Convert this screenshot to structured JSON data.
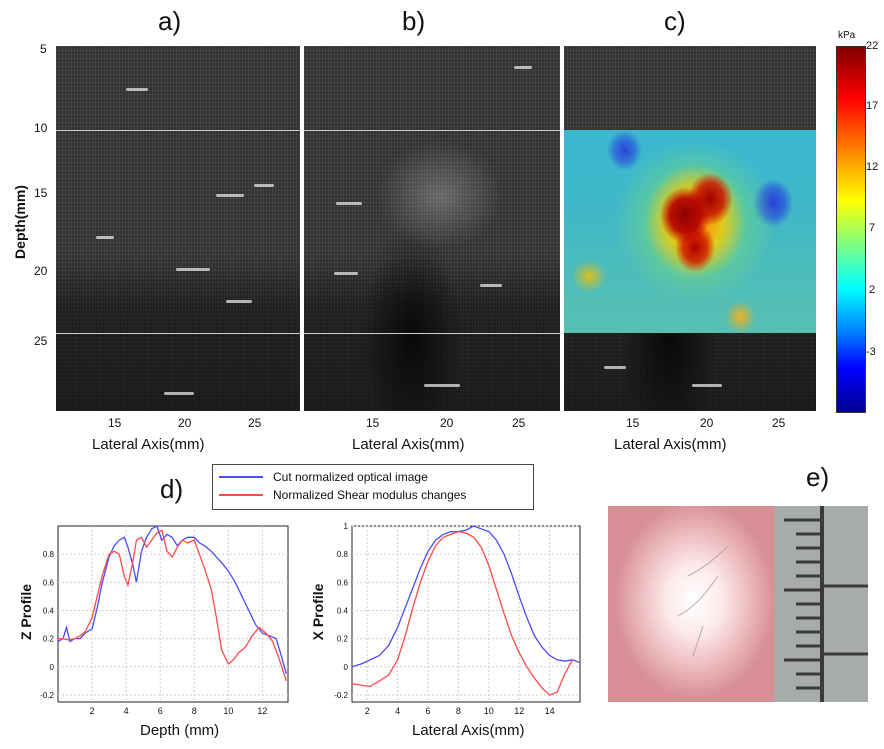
{
  "panel_labels": {
    "a": "a)",
    "b": "b)",
    "c": "c)",
    "d": "d)",
    "e": "e)"
  },
  "top_panels": {
    "ylabel": "Depth(mm)",
    "xlabel": "Lateral Axis(mm)",
    "yticks": [
      "5",
      "10",
      "15",
      "20",
      "25"
    ],
    "xticks": [
      "15",
      "20",
      "25"
    ]
  },
  "colorbar": {
    "unit": "kPa",
    "ticks": [
      "22",
      "17",
      "12",
      "7",
      "2",
      "-3"
    ],
    "range": [
      -7,
      22
    ],
    "colormap": "jet"
  },
  "legend": {
    "entries": [
      {
        "label": "Cut normalized optical image",
        "color": "#4a4aff"
      },
      {
        "label": "Normalized Shear modulus changes",
        "color": "#ff4a4a"
      }
    ]
  },
  "chart_data": [
    {
      "type": "line",
      "xlabel": "Depth (mm)",
      "ylabel": "Z Profile",
      "xlim": [
        0,
        13.5
      ],
      "ylim": [
        -0.25,
        1.0
      ],
      "xticks": [
        "2",
        "4",
        "6",
        "8",
        "10",
        "12"
      ],
      "yticks": [
        "0.8",
        "0.6",
        "0.4",
        "0.2",
        "0",
        "-0.2"
      ],
      "grid": true,
      "series": [
        {
          "color": "#4a4aff",
          "x": [
            0.0,
            0.3,
            0.5,
            0.7,
            1.0,
            1.3,
            1.6,
            2.0,
            2.3,
            2.6,
            3.0,
            3.3,
            3.6,
            3.9,
            4.1,
            4.4,
            4.6,
            4.9,
            5.2,
            5.5,
            5.8,
            6.1,
            6.4,
            6.7,
            7.0,
            7.3,
            7.6,
            8.0,
            8.3,
            8.6,
            9.0,
            9.3,
            9.6,
            10.0,
            10.4,
            10.8,
            11.2,
            11.6,
            12.0,
            12.4,
            12.8,
            13.1,
            13.4
          ],
          "y": [
            0.18,
            0.2,
            0.28,
            0.18,
            0.2,
            0.2,
            0.24,
            0.27,
            0.42,
            0.6,
            0.78,
            0.86,
            0.9,
            0.92,
            0.85,
            0.72,
            0.6,
            0.82,
            0.92,
            0.98,
            1.0,
            0.9,
            0.94,
            0.92,
            0.86,
            0.9,
            0.92,
            0.92,
            0.88,
            0.86,
            0.82,
            0.78,
            0.74,
            0.68,
            0.6,
            0.5,
            0.4,
            0.3,
            0.24,
            0.22,
            0.2,
            0.08,
            -0.05
          ]
        },
        {
          "color": "#ff4a4a",
          "x": [
            0.0,
            0.3,
            0.6,
            1.0,
            1.3,
            1.6,
            2.0,
            2.3,
            2.6,
            3.0,
            3.3,
            3.6,
            3.9,
            4.1,
            4.4,
            4.6,
            4.9,
            5.2,
            5.5,
            5.8,
            6.1,
            6.4,
            6.7,
            7.0,
            7.3,
            7.6,
            8.0,
            8.3,
            8.6,
            9.0,
            9.3,
            9.6,
            10.0,
            10.3,
            10.6,
            11.0,
            11.4,
            11.8,
            12.2,
            12.6,
            13.0,
            13.4
          ],
          "y": [
            0.2,
            0.2,
            0.19,
            0.2,
            0.22,
            0.25,
            0.35,
            0.5,
            0.65,
            0.8,
            0.82,
            0.8,
            0.64,
            0.58,
            0.75,
            0.9,
            0.92,
            0.85,
            0.9,
            0.95,
            0.97,
            0.82,
            0.78,
            0.85,
            0.9,
            0.88,
            0.9,
            0.8,
            0.7,
            0.55,
            0.35,
            0.12,
            0.02,
            0.05,
            0.1,
            0.14,
            0.22,
            0.28,
            0.24,
            0.18,
            0.05,
            -0.1
          ]
        }
      ]
    },
    {
      "type": "line",
      "xlabel": "Lateral Axis(mm)",
      "ylabel": "X Profile",
      "xlim": [
        1.0,
        16.0
      ],
      "ylim": [
        -0.25,
        1.0
      ],
      "xticks": [
        "2",
        "4",
        "6",
        "8",
        "10",
        "12",
        "14"
      ],
      "yticks": [
        "1",
        "0.8",
        "0.6",
        "0.4",
        "0.2",
        "0",
        "-0.2"
      ],
      "grid": true,
      "series": [
        {
          "color": "#4a4aff",
          "x": [
            1.0,
            1.6,
            2.2,
            2.8,
            3.4,
            4.0,
            4.5,
            5.0,
            5.5,
            6.0,
            6.5,
            7.0,
            7.5,
            8.0,
            8.5,
            9.0,
            9.5,
            10.0,
            10.5,
            11.0,
            11.5,
            12.0,
            12.5,
            13.0,
            13.5,
            14.0,
            14.5,
            15.0,
            15.5,
            16.0
          ],
          "y": [
            0.0,
            0.02,
            0.05,
            0.08,
            0.15,
            0.28,
            0.42,
            0.56,
            0.7,
            0.82,
            0.9,
            0.94,
            0.96,
            0.96,
            0.97,
            1.0,
            0.98,
            0.96,
            0.9,
            0.8,
            0.66,
            0.5,
            0.35,
            0.22,
            0.14,
            0.08,
            0.05,
            0.04,
            0.05,
            0.03
          ]
        },
        {
          "color": "#ff4a4a",
          "x": [
            1.0,
            1.6,
            2.2,
            2.8,
            3.4,
            4.0,
            4.5,
            5.0,
            5.5,
            6.0,
            6.5,
            7.0,
            7.5,
            8.0,
            8.5,
            9.0,
            9.5,
            10.0,
            10.5,
            11.0,
            11.5,
            12.0,
            12.5,
            13.0,
            13.5,
            14.0,
            14.5,
            15.0,
            15.5
          ],
          "y": [
            -0.12,
            -0.13,
            -0.14,
            -0.1,
            -0.06,
            0.05,
            0.22,
            0.42,
            0.6,
            0.75,
            0.86,
            0.92,
            0.94,
            0.96,
            0.95,
            0.92,
            0.85,
            0.72,
            0.55,
            0.38,
            0.22,
            0.1,
            0.0,
            -0.08,
            -0.15,
            -0.2,
            -0.18,
            -0.05,
            0.05
          ]
        }
      ]
    }
  ]
}
